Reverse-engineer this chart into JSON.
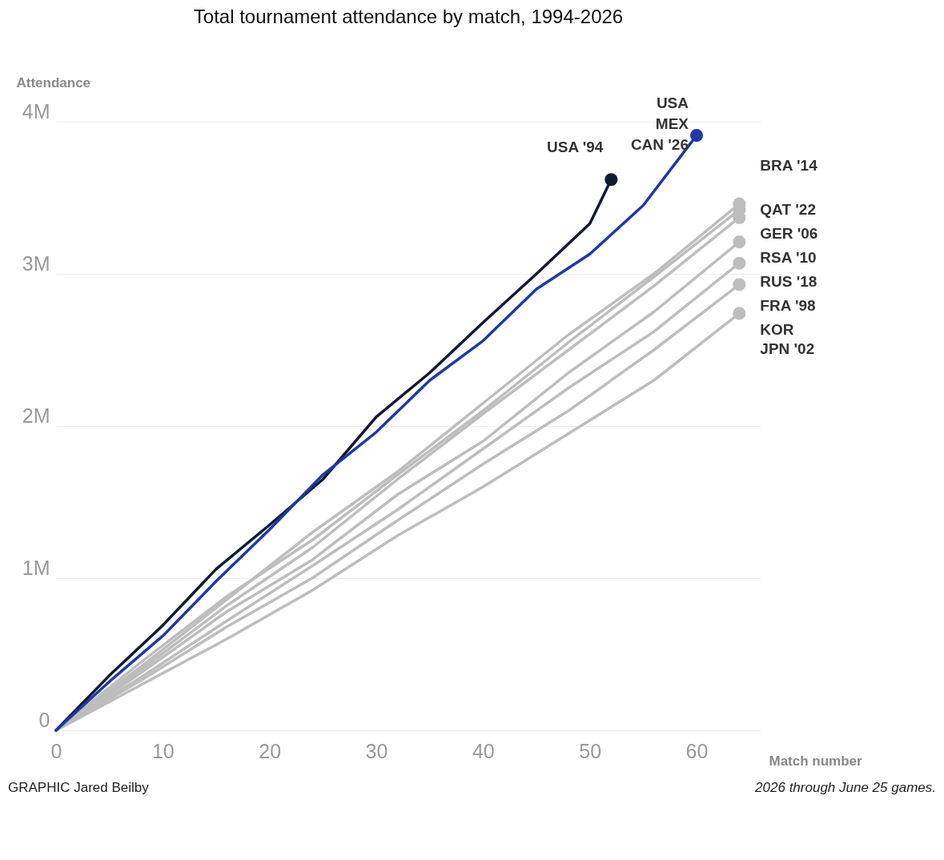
{
  "chart_data": {
    "type": "line",
    "title": "Total tournament attendance by match, 1994-2026",
    "xlabel": "Match number",
    "ylabel": "Attendance",
    "xlim": [
      0,
      66
    ],
    "xticks": [
      0,
      10,
      20,
      30,
      40,
      50,
      60
    ],
    "ylim": [
      0,
      4
    ],
    "yticks": [
      {
        "value": 0,
        "label": "0"
      },
      {
        "value": 1,
        "label": "1M"
      },
      {
        "value": 2,
        "label": "2M"
      },
      {
        "value": 3,
        "label": "3M"
      },
      {
        "value": 4,
        "label": "4M"
      }
    ],
    "grid": "y",
    "line_style": "solid",
    "series": [
      {
        "name": "BRA '14",
        "color": "#bdbdbd",
        "x": [
          0,
          8,
          16,
          24,
          32,
          40,
          48,
          56,
          64
        ],
        "values": [
          0,
          0.42,
          0.86,
          1.3,
          1.7,
          2.15,
          2.6,
          3.0,
          3.46
        ]
      },
      {
        "name": "QAT '22",
        "color": "#bdbdbd",
        "x": [
          0,
          8,
          16,
          24,
          32,
          40,
          48,
          56,
          64
        ],
        "values": [
          0,
          0.45,
          0.88,
          1.25,
          1.68,
          2.1,
          2.55,
          2.98,
          3.42
        ]
      },
      {
        "name": "GER '06",
        "color": "#bdbdbd",
        "x": [
          0,
          8,
          16,
          24,
          32,
          40,
          48,
          56,
          64
        ],
        "values": [
          0,
          0.4,
          0.82,
          1.2,
          1.65,
          2.08,
          2.5,
          2.92,
          3.37
        ]
      },
      {
        "name": "RSA '10",
        "color": "#bdbdbd",
        "x": [
          0,
          8,
          16,
          24,
          32,
          40,
          48,
          56,
          64
        ],
        "values": [
          0,
          0.38,
          0.78,
          1.12,
          1.55,
          1.9,
          2.35,
          2.75,
          3.21
        ]
      },
      {
        "name": "RUS '18",
        "color": "#bdbdbd",
        "x": [
          0,
          8,
          16,
          24,
          32,
          40,
          48,
          56,
          64
        ],
        "values": [
          0,
          0.35,
          0.72,
          1.08,
          1.45,
          1.85,
          2.25,
          2.62,
          3.07
        ]
      },
      {
        "name": "FRA '98",
        "color": "#bdbdbd",
        "x": [
          0,
          8,
          16,
          24,
          32,
          40,
          48,
          56,
          64
        ],
        "values": [
          0,
          0.33,
          0.68,
          1.0,
          1.38,
          1.75,
          2.1,
          2.5,
          2.93
        ]
      },
      {
        "name": "KOR\nJPN '02",
        "color": "#bdbdbd",
        "x": [
          0,
          8,
          16,
          24,
          32,
          40,
          48,
          56,
          64
        ],
        "values": [
          0,
          0.3,
          0.6,
          0.92,
          1.28,
          1.6,
          1.95,
          2.3,
          2.74
        ]
      },
      {
        "name": "USA '94",
        "color": "#111a33",
        "x": [
          0,
          5,
          10,
          15,
          20,
          25,
          30,
          35,
          40,
          45,
          50,
          52
        ],
        "values": [
          0,
          0.36,
          0.69,
          1.06,
          1.35,
          1.65,
          2.06,
          2.35,
          2.68,
          3.0,
          3.33,
          3.62
        ]
      },
      {
        "name": "USA\nMEX\nCAN '26",
        "color": "#1e39a6",
        "x": [
          0,
          5,
          10,
          15,
          20,
          25,
          30,
          35,
          40,
          45,
          50,
          55,
          60
        ],
        "values": [
          0,
          0.32,
          0.62,
          0.98,
          1.32,
          1.68,
          1.96,
          2.3,
          2.56,
          2.9,
          3.13,
          3.45,
          3.91
        ]
      }
    ],
    "annotations": [
      "GRAPHIC Jared Beilby",
      "2026 through June 25 games."
    ]
  }
}
